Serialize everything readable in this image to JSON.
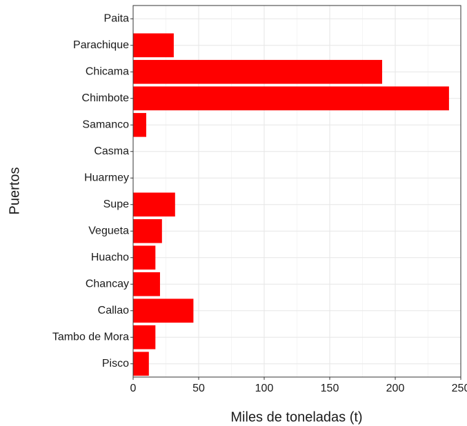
{
  "chart_data": {
    "type": "bar",
    "orientation": "horizontal",
    "x_label": "Miles de toneladas (t)",
    "y_label": "Puertos",
    "categories": [
      "Paita",
      "Parachique",
      "Chicama",
      "Chimbote",
      "Samanco",
      "Casma",
      "Huarmey",
      "Supe",
      "Vegueta",
      "Huacho",
      "Chancay",
      "Callao",
      "Tambo de Mora",
      "Pisco"
    ],
    "values": [
      0,
      31,
      190,
      241,
      10,
      0,
      0,
      32,
      22,
      17,
      20.5,
      46,
      17,
      12
    ],
    "color": "#ff0000",
    "xlim": [
      0,
      250
    ],
    "xticks": [
      0,
      50,
      100,
      150,
      200,
      250
    ],
    "grid": true
  }
}
